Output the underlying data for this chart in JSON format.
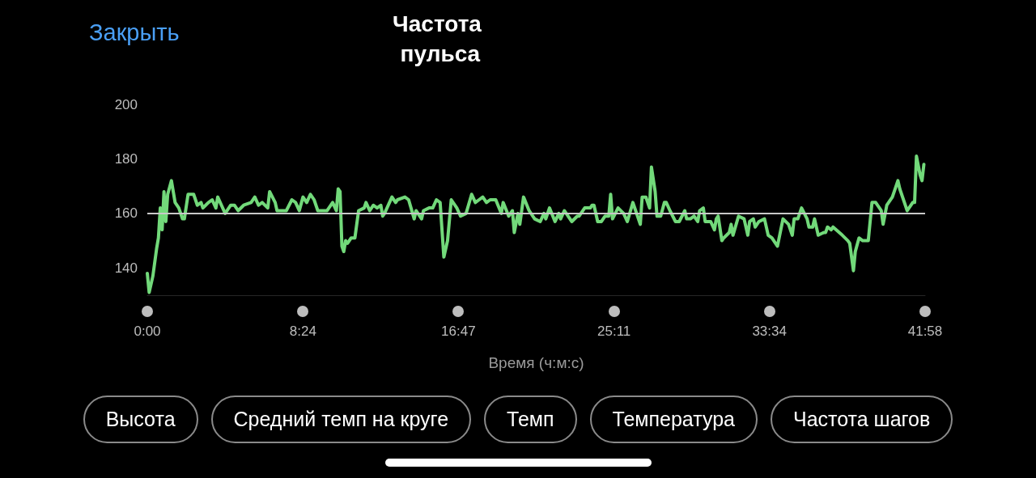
{
  "chart_data": {
    "type": "line",
    "title": "Частота пульса",
    "xlabel": "Время (ч:м:с)",
    "annotations": [
      "Закрыть",
      "Высота",
      "Средний темп на круге",
      "Темп",
      "Температура",
      "Частота шагов"
    ],
    "xlim": [
      0,
      41.967
    ],
    "xticks": [
      {
        "value": 0,
        "label": "0:00"
      },
      {
        "value": 8.4,
        "label": "8:24"
      },
      {
        "value": 16.783,
        "label": "16:47"
      },
      {
        "value": 25.183,
        "label": "25:11"
      },
      {
        "value": 33.567,
        "label": "33:34"
      },
      {
        "value": 41.967,
        "label": "41:58"
      }
    ],
    "ylim": [
      130,
      200
    ],
    "yticks": [
      140,
      160,
      180,
      200
    ],
    "grid": false,
    "marker": "none",
    "line_style": "solid",
    "ref_lines": [
      {
        "axis": "y",
        "value": 160,
        "color": "#c8c8c8"
      }
    ],
    "series": [
      {
        "color": "#72d97a",
        "x": [
          0,
          0.1,
          0.3,
          0.5,
          0.6,
          0.7,
          0.8,
          0.9,
          1.0,
          1.1,
          1.3,
          1.5,
          1.7,
          1.9,
          2.0,
          2.2,
          2.5,
          2.7,
          2.9,
          3.0,
          3.3,
          3.5,
          3.7,
          3.8,
          4.2,
          4.5,
          4.7,
          4.9,
          5.2,
          5.6,
          5.8,
          6.0,
          6.2,
          6.5,
          6.6,
          6.9,
          7.0,
          7.5,
          7.8,
          8.0,
          8.2,
          8.4,
          8.6,
          8.8,
          9.0,
          9.2,
          9.7,
          10.0,
          10.2,
          10.3,
          10.4,
          10.5,
          10.6,
          10.7,
          10.8,
          11.0,
          11.2,
          11.4,
          11.7,
          11.8,
          12.0,
          12.2,
          12.4,
          12.6,
          12.7,
          12.8,
          13.2,
          13.4,
          13.5,
          13.9,
          14.1,
          14.4,
          14.5,
          14.8,
          14.9,
          15.2,
          15.4,
          15.6,
          15.8,
          16.0,
          16.2,
          16.4,
          16.7,
          16.9,
          17.2,
          17.5,
          17.7,
          17.9,
          18.1,
          18.3,
          18.5,
          18.8,
          19.1,
          19.2,
          19.5,
          19.7,
          19.8,
          20.0,
          20.1,
          20.3,
          20.6,
          20.9,
          21.2,
          21.4,
          21.5,
          21.7,
          22.0,
          22.2,
          22.3,
          22.5,
          22.9,
          23.2,
          23.3,
          23.6,
          23.9,
          24.0,
          24.1,
          24.3,
          24.5,
          24.7,
          24.9,
          25.0,
          25.1,
          25.4,
          25.7,
          25.9,
          26.2,
          26.6,
          26.7,
          26.9,
          27.1,
          27.2,
          27.4,
          27.5,
          27.7,
          27.9,
          28.0,
          28.2,
          28.5,
          28.7,
          29.0,
          29.1,
          29.3,
          29.5,
          29.6,
          29.7,
          29.8,
          30.0,
          30.1,
          30.4,
          30.6,
          30.7,
          30.8,
          31.0,
          31.1,
          31.4,
          31.5,
          31.6,
          31.9,
          32.2,
          32.4,
          32.5,
          32.7,
          32.8,
          33.0,
          33.3,
          33.5,
          33.7,
          34.0,
          34.3,
          34.6,
          34.8,
          34.9,
          35.1,
          35.3,
          35.6,
          35.7,
          35.9,
          36.0,
          36.2,
          36.5,
          36.6,
          36.7,
          36.9,
          37.0,
          37.5,
          37.8,
          37.9,
          38.1,
          38.2,
          38.4,
          38.6,
          38.9,
          39.1,
          39.3,
          39.6,
          39.7,
          39.9,
          40.2,
          40.4,
          40.5,
          40.6,
          41.0,
          41.3,
          41.4,
          41.5,
          41.7,
          41.8,
          41.9
        ],
        "values": [
          138,
          131,
          137,
          147,
          151,
          162,
          154,
          168,
          157,
          167,
          172,
          164,
          162,
          158,
          158,
          167,
          167,
          163,
          164,
          162,
          164,
          165,
          162,
          166,
          160,
          163,
          163,
          161,
          163,
          164,
          166,
          163,
          164,
          162,
          168,
          164,
          161,
          161,
          165,
          164,
          161,
          166,
          164,
          167,
          165,
          161,
          161,
          164,
          161,
          169,
          168,
          148,
          146,
          150,
          149,
          151,
          151,
          161,
          162,
          164,
          161,
          163,
          162,
          163,
          159,
          160,
          166,
          164,
          165,
          166,
          165,
          158,
          161,
          158,
          161,
          162,
          162,
          165,
          164,
          144,
          150,
          165,
          162,
          159,
          160,
          167,
          164,
          165,
          166,
          164,
          165,
          165,
          160,
          164,
          159,
          161,
          153,
          160,
          156,
          166,
          161,
          158,
          157,
          160,
          158,
          162,
          157,
          160,
          158,
          161,
          157,
          159,
          159,
          162,
          162,
          163,
          163,
          157,
          157,
          159,
          159,
          167,
          158,
          162,
          160,
          157,
          164,
          156,
          166,
          166,
          162,
          177,
          168,
          159,
          159,
          164,
          164,
          161,
          157,
          157,
          161,
          158,
          158,
          159,
          158,
          157,
          161,
          162,
          157,
          157,
          154,
          158,
          159,
          150,
          151,
          153,
          156,
          152,
          159,
          158,
          152,
          157,
          158,
          155,
          157,
          158,
          152,
          151,
          148,
          158,
          156,
          152,
          158,
          158,
          162,
          158,
          155,
          155,
          158,
          152,
          153,
          153,
          155,
          154,
          155,
          152,
          150,
          149,
          139,
          146,
          151,
          150,
          150,
          164,
          164,
          161,
          156,
          163,
          166,
          170,
          172,
          169,
          161,
          164,
          164,
          181,
          174,
          172,
          178
        ]
      }
    ]
  }
}
